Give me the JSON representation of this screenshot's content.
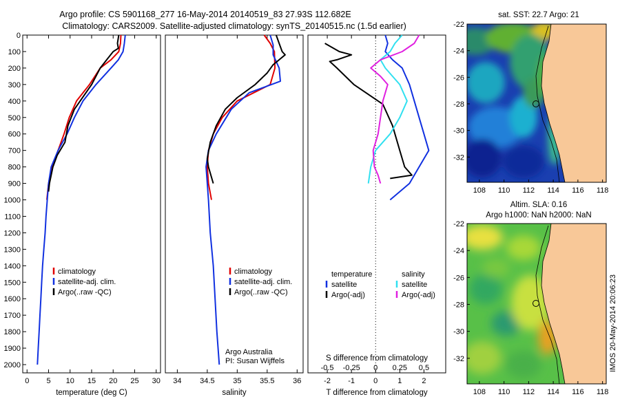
{
  "title": {
    "line1": "Argo profile: CS 5901168_277 16-May-2014 20140519_83 27.93S 112.682E",
    "line2": "Climatology: CARS2009. Satellite-adjusted climatology: synTS_20140515.nc (1.5d earlier)"
  },
  "side_label": "IMOS 20-May-2014 20:06:23",
  "colors": {
    "red": "#e00000",
    "blue": "#1030e0",
    "black": "#000000",
    "cyan": "#30e0f0",
    "magenta": "#e020e0",
    "land": "#f8c898"
  },
  "chart_data": [
    {
      "id": "temperature",
      "type": "line",
      "xlabel": "temperature (deg C)",
      "ylabel": "",
      "xlim": [
        -1,
        31
      ],
      "ylim": [
        2050,
        0
      ],
      "xticks": [
        0,
        5,
        10,
        15,
        20,
        25,
        30
      ],
      "yticks": [
        0,
        100,
        200,
        300,
        400,
        500,
        600,
        700,
        800,
        900,
        1000,
        1100,
        1200,
        1300,
        1400,
        1500,
        1600,
        1700,
        1800,
        1900,
        2000
      ],
      "legend": {
        "position": "lower-center",
        "entries": [
          "climatology",
          "satellite-adj. clim.",
          "Argo(..raw -QC)"
        ]
      },
      "series": [
        {
          "name": "climatology",
          "color": "red",
          "points": [
            [
              21.8,
              0
            ],
            [
              21.7,
              50
            ],
            [
              21.3,
              100
            ],
            [
              19.5,
              150
            ],
            [
              17,
              200
            ],
            [
              14.5,
              300
            ],
            [
              11.5,
              400
            ],
            [
              9.8,
              500
            ],
            [
              8.6,
              600
            ],
            [
              7.2,
              700
            ],
            [
              5.8,
              800
            ],
            [
              5.0,
              900
            ],
            [
              4.6,
              1000
            ]
          ]
        },
        {
          "name": "satellite-adj. clim.",
          "color": "blue",
          "points": [
            [
              22.8,
              0
            ],
            [
              22.6,
              50
            ],
            [
              22.3,
              100
            ],
            [
              21.2,
              150
            ],
            [
              19.5,
              200
            ],
            [
              16,
              300
            ],
            [
              13,
              400
            ],
            [
              11,
              500
            ],
            [
              9.3,
              600
            ],
            [
              7.2,
              700
            ],
            [
              5.6,
              800
            ],
            [
              5.0,
              900
            ],
            [
              4.7,
              1000
            ],
            [
              4.4,
              1100
            ],
            [
              4.2,
              1200
            ],
            [
              3.9,
              1300
            ],
            [
              3.6,
              1400
            ],
            [
              3.4,
              1500
            ],
            [
              3.2,
              1600
            ],
            [
              3.0,
              1700
            ],
            [
              2.8,
              1800
            ],
            [
              2.6,
              1900
            ],
            [
              2.4,
              2000
            ]
          ]
        },
        {
          "name": "Argo(..raw -QC)",
          "color": "black",
          "points": [
            [
              21.3,
              0
            ],
            [
              21.0,
              50
            ],
            [
              21.2,
              80
            ],
            [
              20.0,
              100
            ],
            [
              18.5,
              150
            ],
            [
              17.0,
              200
            ],
            [
              15.0,
              300
            ],
            [
              11.0,
              450
            ],
            [
              9.5,
              550
            ],
            [
              8.8,
              650
            ],
            [
              7.0,
              730
            ],
            [
              6.0,
              800
            ],
            [
              5.2,
              900
            ],
            [
              5.0,
              950
            ]
          ]
        }
      ]
    },
    {
      "id": "salinity",
      "type": "line",
      "xlabel": "salinity",
      "ylabel": "",
      "xlim": [
        33.8,
        36.1
      ],
      "ylim": [
        2050,
        0
      ],
      "xticks": [
        34,
        34.5,
        35,
        35.5,
        36
      ],
      "legend": {
        "position": "lower-center",
        "entries": [
          "climatology",
          "satellite-adj. clim.",
          "Argo(..raw -QC)"
        ]
      },
      "annotations": [
        "Argo Australia",
        "PI: Susan Wijffels"
      ],
      "series": [
        {
          "name": "climatology",
          "color": "red",
          "points": [
            [
              35.45,
              0
            ],
            [
              35.55,
              50
            ],
            [
              35.62,
              100
            ],
            [
              35.63,
              200
            ],
            [
              35.55,
              300
            ],
            [
              35.0,
              400
            ],
            [
              34.75,
              500
            ],
            [
              34.6,
              600
            ],
            [
              34.52,
              700
            ],
            [
              34.5,
              800
            ],
            [
              34.52,
              900
            ],
            [
              34.57,
              1000
            ]
          ]
        },
        {
          "name": "satellite-adj. clim.",
          "color": "blue",
          "points": [
            [
              35.55,
              0
            ],
            [
              35.6,
              60
            ],
            [
              35.6,
              120
            ],
            [
              35.7,
              200
            ],
            [
              35.72,
              280
            ],
            [
              35.2,
              350
            ],
            [
              34.9,
              450
            ],
            [
              34.65,
              600
            ],
            [
              34.52,
              700
            ],
            [
              34.48,
              800
            ],
            [
              34.5,
              900
            ],
            [
              34.52,
              1000
            ],
            [
              34.55,
              1200
            ],
            [
              34.6,
              1400
            ],
            [
              34.63,
              1600
            ],
            [
              34.66,
              1800
            ],
            [
              34.7,
              2000
            ]
          ]
        },
        {
          "name": "Argo(..raw -QC)",
          "color": "black",
          "points": [
            [
              35.65,
              0
            ],
            [
              35.7,
              50
            ],
            [
              35.75,
              100
            ],
            [
              35.8,
              120
            ],
            [
              35.6,
              180
            ],
            [
              35.5,
              230
            ],
            [
              35.3,
              300
            ],
            [
              35.0,
              380
            ],
            [
              34.8,
              450
            ],
            [
              34.65,
              550
            ],
            [
              34.55,
              650
            ],
            [
              34.5,
              750
            ],
            [
              34.52,
              800
            ],
            [
              34.6,
              900
            ]
          ]
        }
      ]
    },
    {
      "id": "differences",
      "type": "line",
      "xlabel": "T difference from climatology",
      "title_bottom": "S difference from climatology",
      "xlim": [
        -2.8,
        2.9
      ],
      "ylim": [
        2050,
        0
      ],
      "xticks": [
        -2,
        -1,
        0,
        1,
        2
      ],
      "xticks_top_labels": [
        "-0.5",
        "-0.25",
        "0",
        "0.25",
        "0.5"
      ],
      "xticks_top_values": [
        -2,
        -1,
        0,
        1,
        2
      ],
      "legend": {
        "position": "lower-center",
        "header_left": "temperature",
        "header_right": "salinity",
        "entries": [
          "satellite",
          "Argo(-adj)",
          "satellite",
          "Argo(-adj)"
        ]
      },
      "series": [
        {
          "name": "temperature satellite",
          "color": "blue",
          "points": [
            [
              0.4,
              0
            ],
            [
              0.5,
              50
            ],
            [
              0.4,
              100
            ],
            [
              0.7,
              150
            ],
            [
              1.1,
              200
            ],
            [
              1.4,
              300
            ],
            [
              1.6,
              400
            ],
            [
              1.8,
              500
            ],
            [
              2.0,
              600
            ],
            [
              2.2,
              700
            ],
            [
              1.8,
              800
            ],
            [
              1.4,
              900
            ],
            [
              0.6,
              1000
            ]
          ]
        },
        {
          "name": "temperature Argo(-adj)",
          "color": "black",
          "points": [
            [
              -2.1,
              50
            ],
            [
              -1.5,
              100
            ],
            [
              -1.0,
              120
            ],
            [
              -1.6,
              150
            ],
            [
              -1.9,
              160
            ],
            [
              -1.6,
              200
            ],
            [
              -0.9,
              300
            ],
            [
              0.3,
              420
            ],
            [
              0.7,
              550
            ],
            [
              1.0,
              700
            ],
            [
              1.2,
              800
            ],
            [
              1.5,
              850
            ],
            [
              0.6,
              870
            ]
          ]
        },
        {
          "name": "salinity satellite",
          "color": "cyan",
          "points": [
            [
              1.1,
              0
            ],
            [
              0.8,
              50
            ],
            [
              0.6,
              100
            ],
            [
              0.2,
              150
            ],
            [
              0.4,
              200
            ],
            [
              1.0,
              300
            ],
            [
              1.3,
              400
            ],
            [
              1.0,
              500
            ],
            [
              0.6,
              600
            ],
            [
              0.0,
              700
            ],
            [
              -0.2,
              800
            ],
            [
              -0.3,
              900
            ]
          ]
        },
        {
          "name": "salinity Argo(-adj)",
          "color": "magenta",
          "points": [
            [
              1.8,
              0
            ],
            [
              1.6,
              50
            ],
            [
              1.1,
              100
            ],
            [
              0.2,
              150
            ],
            [
              -0.2,
              200
            ],
            [
              0.2,
              250
            ],
            [
              0.5,
              300
            ],
            [
              0.3,
              400
            ],
            [
              0.2,
              500
            ],
            [
              0.1,
              600
            ],
            [
              -0.1,
              700
            ],
            [
              -0.05,
              800
            ],
            [
              0.1,
              850
            ],
            [
              0.2,
              900
            ]
          ]
        }
      ]
    }
  ],
  "maps": [
    {
      "id": "sst-map",
      "title": "sat. SST: 22.7 Argo: 21",
      "xlim": [
        107,
        118.3
      ],
      "ylim": [
        -33.9,
        -22
      ],
      "xticks": [
        108,
        110,
        112,
        114,
        116,
        118
      ],
      "yticks": [
        -22,
        -24,
        -26,
        -28,
        -30,
        -32
      ],
      "argo_position": [
        112.682,
        -27.93
      ]
    },
    {
      "id": "sla-map",
      "title_line1": "Altim. SLA: 0.16",
      "title_line2": "Argo h1000: NaN h2000: NaN",
      "xlim": [
        107,
        118.3
      ],
      "ylim": [
        -33.9,
        -22
      ],
      "xticks": [
        108,
        110,
        112,
        114,
        116,
        118
      ],
      "yticks": [
        -22,
        -24,
        -26,
        -28,
        -30,
        -32
      ],
      "argo_position": [
        112.682,
        -27.93
      ]
    }
  ]
}
